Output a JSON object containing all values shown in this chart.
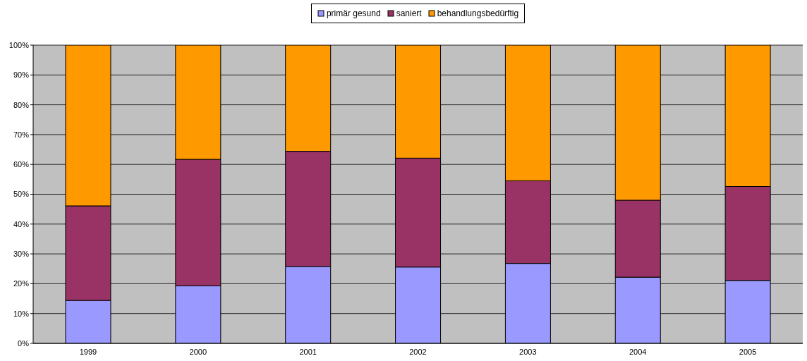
{
  "chart_data": {
    "type": "bar",
    "stacked": true,
    "categories": [
      "1999",
      "2000",
      "2001",
      "2002",
      "2003",
      "2004",
      "2005"
    ],
    "series": [
      {
        "name": "primär gesund",
        "color": "#9999ff",
        "values": [
          14.4,
          19.3,
          25.8,
          25.6,
          26.8,
          22.2,
          21.1
        ]
      },
      {
        "name": "saniert",
        "color": "#993366",
        "values": [
          31.7,
          42.4,
          38.6,
          36.5,
          27.7,
          25.8,
          31.5
        ]
      },
      {
        "name": "behandlungsbedürftig",
        "color": "#ff9900",
        "values": [
          53.9,
          38.3,
          35.6,
          37.9,
          45.5,
          52.0,
          47.4
        ]
      }
    ],
    "ylim": [
      0,
      100
    ],
    "yticks": [
      {
        "value": 0,
        "label": "0%"
      },
      {
        "value": 10,
        "label": "10%"
      },
      {
        "value": 20,
        "label": "20%"
      },
      {
        "value": 30,
        "label": "30%"
      },
      {
        "value": 40,
        "label": "40%"
      },
      {
        "value": 50,
        "label": "50%"
      },
      {
        "value": 60,
        "label": "60%"
      },
      {
        "value": 70,
        "label": "70%"
      },
      {
        "value": 80,
        "label": "80%"
      },
      {
        "value": 90,
        "label": "90%"
      },
      {
        "value": 100,
        "label": "100%"
      }
    ],
    "grid": "y",
    "legend": "top"
  }
}
